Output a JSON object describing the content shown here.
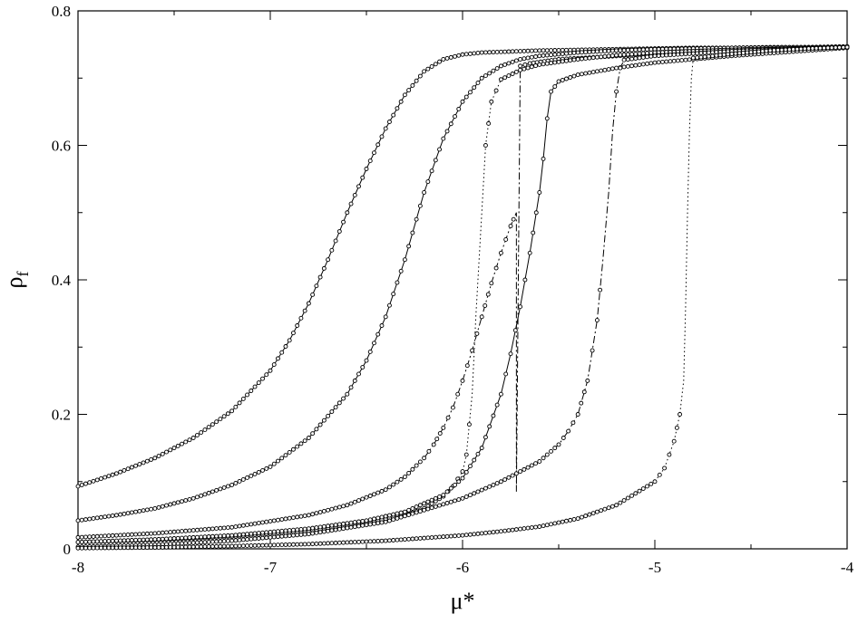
{
  "chart_data": {
    "type": "scatter",
    "title": "",
    "xlabel": "μ*",
    "ylabel": {
      "symbol": "ρ",
      "subscript": "f"
    },
    "xlim": [
      -8,
      -4
    ],
    "ylim": [
      0,
      0.8
    ],
    "xticks": [
      -8,
      -7,
      -6,
      -5,
      -4
    ],
    "xtick_labels": [
      "-8",
      "-7",
      "-6",
      "-5",
      "-4"
    ],
    "yticks": [
      0,
      0.2,
      0.4,
      0.6,
      0.8
    ],
    "ytick_labels": [
      "0",
      "0.2",
      "0.4",
      "0.6",
      "0.8"
    ],
    "grid": false,
    "legend": "none",
    "marker": "open-circle",
    "color": "#000000",
    "series": [
      {
        "line_style": "solid",
        "x": [
          -8.0,
          -7.8,
          -7.6,
          -7.4,
          -7.2,
          -7.0,
          -6.9,
          -6.8,
          -6.7,
          -6.6,
          -6.5,
          -6.4,
          -6.3,
          -6.2,
          -6.1,
          -6.0,
          -5.9,
          -5.8,
          -5.6,
          -5.4,
          -5.2,
          -5.0,
          -4.8,
          -4.6,
          -4.4,
          -4.2,
          -4.0
        ],
        "y": [
          0.093,
          0.112,
          0.135,
          0.165,
          0.205,
          0.265,
          0.31,
          0.365,
          0.43,
          0.5,
          0.565,
          0.625,
          0.675,
          0.71,
          0.728,
          0.735,
          0.738,
          0.739,
          0.741,
          0.742,
          0.743,
          0.744,
          0.745,
          0.745,
          0.746,
          0.746,
          0.747
        ]
      },
      {
        "line_style": "solid",
        "x": [
          -8.0,
          -7.8,
          -7.6,
          -7.4,
          -7.2,
          -7.0,
          -6.8,
          -6.6,
          -6.5,
          -6.4,
          -6.3,
          -6.2,
          -6.1,
          -6.0,
          -5.9,
          -5.8,
          -5.7,
          -5.6,
          -5.4,
          -5.2,
          -5.0,
          -4.6,
          -4.2,
          -4.0
        ],
        "y": [
          0.042,
          0.05,
          0.06,
          0.075,
          0.095,
          0.122,
          0.165,
          0.23,
          0.28,
          0.345,
          0.43,
          0.53,
          0.61,
          0.665,
          0.7,
          0.718,
          0.728,
          0.733,
          0.738,
          0.741,
          0.743,
          0.745,
          0.746,
          0.747
        ]
      },
      {
        "line_style": "dash-dot",
        "x": [
          -8.0,
          -7.6,
          -7.2,
          -6.8,
          -6.6,
          -6.4,
          -6.3,
          -6.2,
          -6.15,
          -6.1,
          -6.05,
          -6.0,
          -5.95,
          -5.9,
          -5.85,
          -5.8,
          -5.75,
          -5.72,
          -5.72,
          -5.7,
          -5.65,
          -5.5,
          -5.0,
          -4.5,
          -4.0
        ],
        "y": [
          0.017,
          0.023,
          0.032,
          0.05,
          0.065,
          0.088,
          0.107,
          0.135,
          0.155,
          0.18,
          0.21,
          0.25,
          0.295,
          0.345,
          0.395,
          0.44,
          0.48,
          0.5,
          0.085,
          0.718,
          0.722,
          0.728,
          0.736,
          0.742,
          0.746
        ]
      },
      {
        "line_style": "dotted",
        "x": [
          -8.0,
          -7.6,
          -7.2,
          -6.8,
          -6.5,
          -6.3,
          -6.2,
          -6.1,
          -6.05,
          -6.0,
          -5.98,
          -5.95,
          -5.93,
          -5.9,
          -5.88,
          -5.85,
          -5.8,
          -5.7,
          -5.6,
          -5.4,
          -5.2,
          -5.0,
          -4.5,
          -4.0
        ],
        "y": [
          0.01,
          0.013,
          0.018,
          0.027,
          0.038,
          0.05,
          0.06,
          0.078,
          0.093,
          0.115,
          0.14,
          0.23,
          0.35,
          0.5,
          0.6,
          0.665,
          0.698,
          0.712,
          0.72,
          0.728,
          0.734,
          0.738,
          0.743,
          0.746
        ]
      },
      {
        "line_style": "solid",
        "x": [
          -8.0,
          -7.6,
          -7.2,
          -6.8,
          -6.5,
          -6.3,
          -6.1,
          -6.0,
          -5.9,
          -5.8,
          -5.75,
          -5.7,
          -5.65,
          -5.6,
          -5.58,
          -5.56,
          -5.54,
          -5.5,
          -5.4,
          -5.2,
          -5.0,
          -4.6,
          -4.2,
          -4.0
        ],
        "y": [
          0.01,
          0.014,
          0.02,
          0.03,
          0.042,
          0.055,
          0.08,
          0.105,
          0.15,
          0.23,
          0.29,
          0.36,
          0.44,
          0.53,
          0.58,
          0.64,
          0.68,
          0.695,
          0.705,
          0.715,
          0.723,
          0.733,
          0.741,
          0.745
        ]
      },
      {
        "line_style": "dash-dot",
        "x": [
          -8.0,
          -7.6,
          -7.2,
          -6.8,
          -6.4,
          -6.0,
          -5.8,
          -5.6,
          -5.5,
          -5.45,
          -5.4,
          -5.35,
          -5.3,
          -5.27,
          -5.24,
          -5.22,
          -5.2,
          -5.18,
          -5.16,
          -5.0,
          -4.6,
          -4.2,
          -4.0
        ],
        "y": [
          0.003,
          0.006,
          0.012,
          0.022,
          0.04,
          0.075,
          0.1,
          0.13,
          0.155,
          0.175,
          0.2,
          0.25,
          0.34,
          0.43,
          0.53,
          0.62,
          0.68,
          0.715,
          0.727,
          0.733,
          0.74,
          0.745,
          0.747
        ]
      },
      {
        "line_style": "dotted",
        "x": [
          -8.0,
          -7.6,
          -7.2,
          -6.8,
          -6.4,
          -6.0,
          -5.8,
          -5.6,
          -5.6,
          -5.4,
          -5.2,
          -5.0,
          -4.95,
          -4.9,
          -4.87,
          -4.85,
          -4.84,
          -4.83,
          -4.82,
          -4.81,
          -4.8,
          -4.6,
          -4.4,
          -4.2,
          -4.0
        ],
        "y": [
          0.001,
          0.002,
          0.004,
          0.007,
          0.012,
          0.02,
          0.026,
          0.033,
          0.033,
          0.045,
          0.065,
          0.1,
          0.12,
          0.16,
          0.2,
          0.25,
          0.36,
          0.5,
          0.62,
          0.7,
          0.73,
          0.736,
          0.741,
          0.744,
          0.746
        ]
      }
    ]
  }
}
